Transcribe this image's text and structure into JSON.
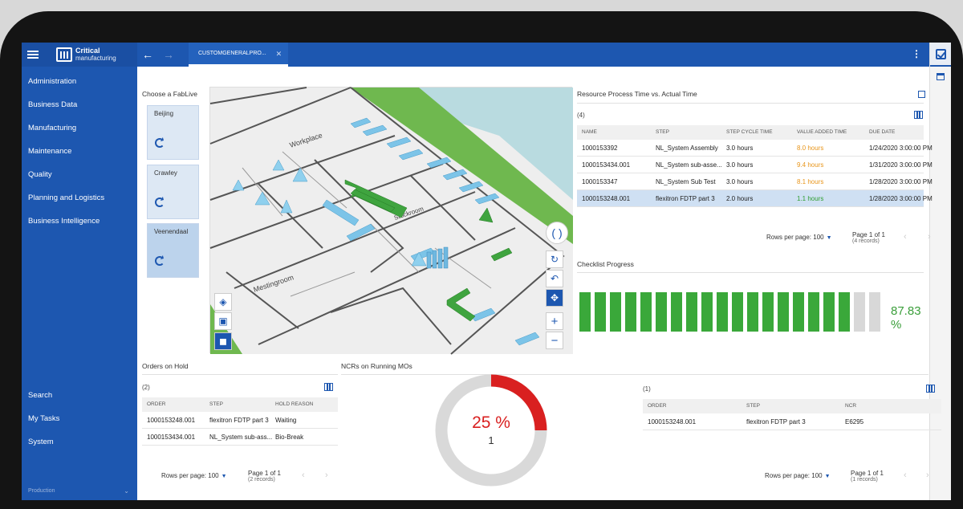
{
  "app": {
    "logo_name": "Critical",
    "logo_sub": "manufacturing",
    "tab_label": "CUSTOMGENERALPRO...",
    "footer": "Production"
  },
  "sidebar": {
    "items": [
      {
        "label": "Administration"
      },
      {
        "label": "Business Data"
      },
      {
        "label": "Manufacturing"
      },
      {
        "label": "Maintenance"
      },
      {
        "label": "Quality"
      },
      {
        "label": "Planning and Logistics"
      },
      {
        "label": "Business Intelligence"
      }
    ],
    "bottom_items": [
      {
        "label": "Search"
      },
      {
        "label": "My Tasks"
      },
      {
        "label": "System"
      }
    ]
  },
  "fablive": {
    "title": "Choose a FabLive",
    "sites": [
      {
        "name": "Beijing"
      },
      {
        "name": "Crawley"
      },
      {
        "name": "Veenendaal"
      }
    ]
  },
  "map": {
    "labels": [
      "Workplace",
      "Mestingroom",
      "Stockroom"
    ]
  },
  "resource": {
    "title": "Resource Process Time vs. Actual Time",
    "count": "(4)",
    "headers": [
      "NAME",
      "STEP",
      "STEP CYCLE TIME",
      "VALUE ADDED TIME",
      "DUE DATE"
    ],
    "rows": [
      {
        "name": "1000153392",
        "step": "NL_System Assembly",
        "cycle": "3.0 hours",
        "value": "8.0 hours",
        "due": "1/24/2020 3:00:00 PM"
      },
      {
        "name": "1000153434.001",
        "step": "NL_System sub-asse...",
        "cycle": "3.0 hours",
        "value": "9.4 hours",
        "due": "1/31/2020 3:00:00 PM"
      },
      {
        "name": "1000153347",
        "step": "NL_System Sub Test",
        "cycle": "3.0 hours",
        "value": "8.1 hours",
        "due": "1/28/2020 3:00:00 PM"
      },
      {
        "name": "1000153248.001",
        "step": "flexitron FDTP part 3",
        "cycle": "2.0 hours",
        "value": "1.1 hours",
        "due": "1/28/2020 3:00:00 PM"
      }
    ],
    "rows_per_page": "Rows per page:",
    "rows_per_page_value": "100",
    "page": "Page 1 of 1",
    "records": "(4 records)"
  },
  "checklist": {
    "title": "Checklist Progress",
    "percent_label": "87.83 %",
    "segments_total": 20,
    "segments_filled": 18
  },
  "orders": {
    "title": "Orders on Hold",
    "count": "(2)",
    "headers": [
      "ORDER",
      "STEP",
      "HOLD REASON"
    ],
    "rows": [
      {
        "order": "1000153248.001",
        "step": "flexitron FDTP part 3",
        "reason": "Waiting"
      },
      {
        "order": "1000153434.001",
        "step": "NL_System sub-ass...",
        "reason": "Bio-Break"
      }
    ],
    "rows_per_page": "Rows per page:",
    "rows_per_page_value": "100",
    "page": "Page 1 of 1",
    "records": "(2 records)"
  },
  "ncr": {
    "title": "NCRs on Running MOs",
    "percent": "25 %",
    "count_value": "1",
    "fraction": 0.25,
    "table_count": "(1)",
    "headers": [
      "ORDER",
      "STEP",
      "NCR"
    ],
    "rows": [
      {
        "order": "1000153248.001",
        "step": "flexitron FDTP part 3",
        "ncr": "E6295"
      }
    ],
    "rows_per_page": "Rows per page:",
    "rows_per_page_value": "100",
    "page": "Page 1 of 1",
    "records": "(1 records)"
  },
  "colors": {
    "brand": "#1d57b0",
    "green": "#3aa83a",
    "red": "#d92020",
    "orange": "#e8951a"
  }
}
